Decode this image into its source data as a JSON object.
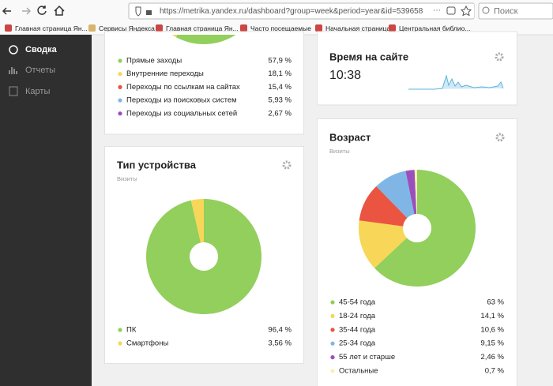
{
  "browser": {
    "url": "https://metrika.yandex.ru/dashboard?group=week&period=year&id=539658",
    "search_placeholder": "Поиск",
    "bookmarks": [
      "Главная страница Ян...",
      "Сервисы Яндекса",
      "Главная страница Ян...",
      "Часто посещаемые",
      "Начальная страница",
      "Центральная библио..."
    ]
  },
  "sidebar": {
    "items": [
      "Сводка",
      "Отчеты",
      "Карты"
    ]
  },
  "widgets": {
    "traffic_sources": {
      "type": "pie",
      "categories": [
        "Прямые заходы",
        "Внутренние переходы",
        "Переходы по ссылкам на сайтах",
        "Переходы из поисковых систем",
        "Переходы из социальных сетей"
      ],
      "values": [
        57.9,
        18.1,
        15.4,
        5.93,
        2.67
      ],
      "value_labels": [
        "57,9 %",
        "18,1 %",
        "15,4 %",
        "5,93 %",
        "2,67 %"
      ],
      "colors": [
        "#92cf5c",
        "#f8d657",
        "#ea5440",
        "#80b6e6",
        "#9b4fbd"
      ]
    },
    "device_type": {
      "type": "pie",
      "title": "Тип устройства",
      "subtitle": "Визиты",
      "categories": [
        "ПК",
        "Смартфоны"
      ],
      "values": [
        96.4,
        3.56
      ],
      "value_labels": [
        "96,4 %",
        "3,56 %"
      ],
      "colors": [
        "#92cf5c",
        "#f8d657"
      ]
    },
    "time_on_site": {
      "title": "Время на сайте",
      "value": "10:38"
    },
    "age": {
      "type": "pie",
      "title": "Возраст",
      "subtitle": "Визиты",
      "categories": [
        "45-54 года",
        "18-24 года",
        "35-44 года",
        "25-34 года",
        "55 лет и старше",
        "Остальные"
      ],
      "values": [
        63,
        14.1,
        10.6,
        9.15,
        2.46,
        0.7
      ],
      "value_labels": [
        "63 %",
        "14,1 %",
        "10,6 %",
        "9,15 %",
        "2,46 %",
        "0,7 %"
      ],
      "colors": [
        "#92cf5c",
        "#f8d657",
        "#ea5440",
        "#80b6e6",
        "#9b4fbd",
        "#fcefb5"
      ]
    }
  }
}
